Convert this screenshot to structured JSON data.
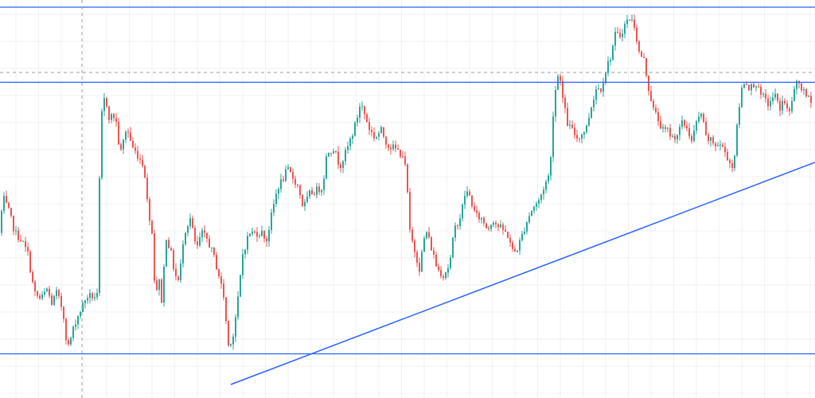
{
  "colors": {
    "background": "#ffffff",
    "grid": "#f0f2f5",
    "up": "#26a69a",
    "down": "#ef5350",
    "drawing_line": "#2962ff",
    "crosshair": "#9e9e9e"
  },
  "chart_data": {
    "type": "candlestick",
    "title": "",
    "xlabel": "",
    "ylabel": "",
    "grid": true,
    "legend": "none",
    "ylim": [
      0,
      100
    ],
    "candles_anchor_closes": [
      [
        0,
        36
      ],
      [
        5,
        46
      ],
      [
        12,
        42
      ],
      [
        20,
        36
      ],
      [
        28,
        34
      ],
      [
        36,
        30
      ],
      [
        44,
        19
      ],
      [
        52,
        17
      ],
      [
        60,
        20
      ],
      [
        66,
        16
      ],
      [
        72,
        19
      ],
      [
        80,
        14
      ],
      [
        86,
        3
      ],
      [
        96,
        11
      ],
      [
        110,
        18
      ],
      [
        124,
        18
      ],
      [
        127,
        67
      ],
      [
        133,
        75
      ],
      [
        138,
        69
      ],
      [
        146,
        69
      ],
      [
        152,
        58
      ],
      [
        160,
        66
      ],
      [
        168,
        60
      ],
      [
        174,
        58
      ],
      [
        182,
        55
      ],
      [
        186,
        45
      ],
      [
        192,
        36
      ],
      [
        196,
        19
      ],
      [
        201,
        22
      ],
      [
        204,
        17
      ],
      [
        210,
        35
      ],
      [
        216,
        30
      ],
      [
        221,
        24
      ],
      [
        226,
        22
      ],
      [
        232,
        36
      ],
      [
        240,
        40
      ],
      [
        248,
        31
      ],
      [
        254,
        36
      ],
      [
        262,
        34
      ],
      [
        270,
        29
      ],
      [
        276,
        24
      ],
      [
        282,
        18
      ],
      [
        288,
        4
      ],
      [
        294,
        7
      ],
      [
        300,
        17
      ],
      [
        306,
        30
      ],
      [
        314,
        36
      ],
      [
        322,
        36
      ],
      [
        330,
        36
      ],
      [
        336,
        34
      ],
      [
        344,
        43
      ],
      [
        350,
        49
      ],
      [
        356,
        51
      ],
      [
        362,
        54
      ],
      [
        368,
        52
      ],
      [
        376,
        49
      ],
      [
        382,
        43
      ],
      [
        390,
        47
      ],
      [
        398,
        48
      ],
      [
        406,
        49
      ],
      [
        412,
        59
      ],
      [
        420,
        60
      ],
      [
        428,
        55
      ],
      [
        436,
        59
      ],
      [
        442,
        63
      ],
      [
        448,
        67
      ],
      [
        454,
        73
      ],
      [
        460,
        69
      ],
      [
        466,
        65
      ],
      [
        472,
        63
      ],
      [
        480,
        65
      ],
      [
        488,
        61
      ],
      [
        496,
        60
      ],
      [
        502,
        59
      ],
      [
        508,
        58
      ],
      [
        512,
        51
      ],
      [
        516,
        36
      ],
      [
        522,
        31
      ],
      [
        528,
        26
      ],
      [
        536,
        37
      ],
      [
        544,
        31
      ],
      [
        550,
        26
      ],
      [
        558,
        24
      ],
      [
        566,
        27
      ],
      [
        572,
        37
      ],
      [
        580,
        41
      ],
      [
        586,
        48
      ],
      [
        592,
        46
      ],
      [
        598,
        41
      ],
      [
        606,
        40
      ],
      [
        614,
        37
      ],
      [
        620,
        40
      ],
      [
        626,
        38
      ],
      [
        632,
        37
      ],
      [
        640,
        35
      ],
      [
        646,
        30
      ],
      [
        652,
        32
      ],
      [
        658,
        36
      ],
      [
        664,
        40
      ],
      [
        670,
        43
      ],
      [
        678,
        45
      ],
      [
        686,
        50
      ],
      [
        692,
        53
      ],
      [
        696,
        70
      ],
      [
        700,
        79
      ],
      [
        704,
        82
      ],
      [
        708,
        74
      ],
      [
        714,
        67
      ],
      [
        720,
        65
      ],
      [
        726,
        63
      ],
      [
        732,
        64
      ],
      [
        738,
        66
      ],
      [
        744,
        72
      ],
      [
        750,
        77
      ],
      [
        756,
        77
      ],
      [
        762,
        82
      ],
      [
        768,
        86
      ],
      [
        774,
        92
      ],
      [
        780,
        92
      ],
      [
        786,
        95
      ],
      [
        792,
        97
      ],
      [
        798,
        95
      ],
      [
        804,
        87
      ],
      [
        810,
        85
      ],
      [
        816,
        77
      ],
      [
        822,
        71
      ],
      [
        828,
        68
      ],
      [
        834,
        65
      ],
      [
        840,
        65
      ],
      [
        846,
        63
      ],
      [
        852,
        64
      ],
      [
        858,
        67
      ],
      [
        864,
        66
      ],
      [
        870,
        62
      ],
      [
        876,
        67
      ],
      [
        882,
        70
      ],
      [
        888,
        63
      ],
      [
        894,
        62
      ],
      [
        900,
        61
      ],
      [
        906,
        61
      ],
      [
        912,
        59
      ],
      [
        918,
        56
      ],
      [
        922,
        54
      ],
      [
        928,
        68
      ],
      [
        932,
        76
      ],
      [
        936,
        79
      ],
      [
        944,
        77
      ],
      [
        950,
        79
      ],
      [
        956,
        75
      ],
      [
        962,
        74
      ],
      [
        968,
        72
      ],
      [
        974,
        76
      ],
      [
        980,
        71
      ],
      [
        986,
        74
      ],
      [
        992,
        69
      ],
      [
        998,
        76
      ],
      [
        1004,
        79
      ],
      [
        1010,
        76
      ],
      [
        1016,
        74
      ]
    ],
    "horizontal_levels": [
      1.7,
      78.7,
      100
    ],
    "crosshair": {
      "candle_index": 86,
      "price": 81.5
    },
    "trendline": {
      "from": [
        290,
        -7
      ],
      "to": [
        1024,
        56
      ]
    }
  }
}
